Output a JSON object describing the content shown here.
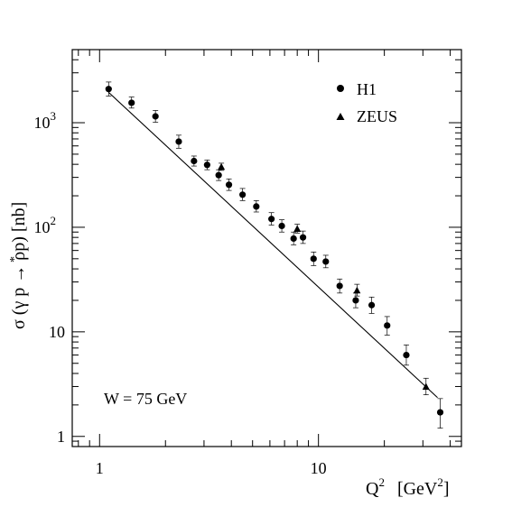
{
  "chart_data": {
    "type": "scatter",
    "xlabel": "Q",
    "xlabel_sup": "2",
    "xlabel_unit": "[GeV",
    "xlabel_unit_sup": "2",
    "xlabel_unit_close": "]",
    "ylabel": "σ (γ p → ρp)  [nb]",
    "ylabel_star": "*",
    "x_scale": "log",
    "y_scale": "log",
    "xlim": [
      0.75,
      45
    ],
    "ylim": [
      0.8,
      5000
    ],
    "grid": false,
    "legend_position": "top-right",
    "annotation": "W = 75 GeV",
    "x_ticks": [
      {
        "value": 1,
        "label": "1"
      },
      {
        "value": 10,
        "label": "10"
      }
    ],
    "y_ticks": [
      {
        "value": 1,
        "base": "1",
        "exp": ""
      },
      {
        "value": 10,
        "base": "10",
        "exp": ""
      },
      {
        "value": 100,
        "base": "10",
        "exp": "2"
      },
      {
        "value": 1000,
        "base": "10",
        "exp": "3"
      }
    ],
    "series": [
      {
        "name": "H1",
        "marker": "circle",
        "points": [
          {
            "x": 1.1,
            "y": 2100,
            "lo": 1800,
            "hi": 2450
          },
          {
            "x": 1.4,
            "y": 1550,
            "lo": 1380,
            "hi": 1760
          },
          {
            "x": 1.8,
            "y": 1150,
            "lo": 1010,
            "hi": 1310
          },
          {
            "x": 2.3,
            "y": 660,
            "lo": 570,
            "hi": 760
          },
          {
            "x": 2.7,
            "y": 430,
            "lo": 385,
            "hi": 480
          },
          {
            "x": 3.1,
            "y": 395,
            "lo": 355,
            "hi": 440
          },
          {
            "x": 3.5,
            "y": 315,
            "lo": 280,
            "hi": 355
          },
          {
            "x": 3.9,
            "y": 255,
            "lo": 225,
            "hi": 290
          },
          {
            "x": 4.5,
            "y": 205,
            "lo": 180,
            "hi": 235
          },
          {
            "x": 5.2,
            "y": 158,
            "lo": 140,
            "hi": 180
          },
          {
            "x": 6.1,
            "y": 120,
            "lo": 105,
            "hi": 138
          },
          {
            "x": 6.8,
            "y": 103,
            "lo": 90,
            "hi": 118
          },
          {
            "x": 7.7,
            "y": 78,
            "lo": 68,
            "hi": 90
          },
          {
            "x": 8.5,
            "y": 80,
            "lo": 70,
            "hi": 92
          },
          {
            "x": 9.5,
            "y": 50,
            "lo": 43,
            "hi": 58
          },
          {
            "x": 10.8,
            "y": 47,
            "lo": 41,
            "hi": 54
          },
          {
            "x": 12.5,
            "y": 27.5,
            "lo": 23.5,
            "hi": 32
          },
          {
            "x": 14.8,
            "y": 20,
            "lo": 17,
            "hi": 23.5
          },
          {
            "x": 17.5,
            "y": 18,
            "lo": 15,
            "hi": 21.5
          },
          {
            "x": 20.6,
            "y": 11.5,
            "lo": 9.3,
            "hi": 14
          },
          {
            "x": 25.2,
            "y": 6,
            "lo": 4.8,
            "hi": 7.5
          },
          {
            "x": 36,
            "y": 1.7,
            "lo": 1.2,
            "hi": 2.3
          }
        ]
      },
      {
        "name": "ZEUS",
        "marker": "triangle",
        "points": [
          {
            "x": 3.6,
            "y": 380,
            "lo": 350,
            "hi": 410
          },
          {
            "x": 8.0,
            "y": 97,
            "lo": 88,
            "hi": 107
          },
          {
            "x": 15.0,
            "y": 25,
            "lo": 22,
            "hi": 28.5
          },
          {
            "x": 31.0,
            "y": 3.0,
            "lo": 2.5,
            "hi": 3.6
          }
        ]
      }
    ],
    "fit_line": {
      "x": [
        1.1,
        35
      ],
      "y": [
        1950,
        2.35
      ]
    }
  }
}
